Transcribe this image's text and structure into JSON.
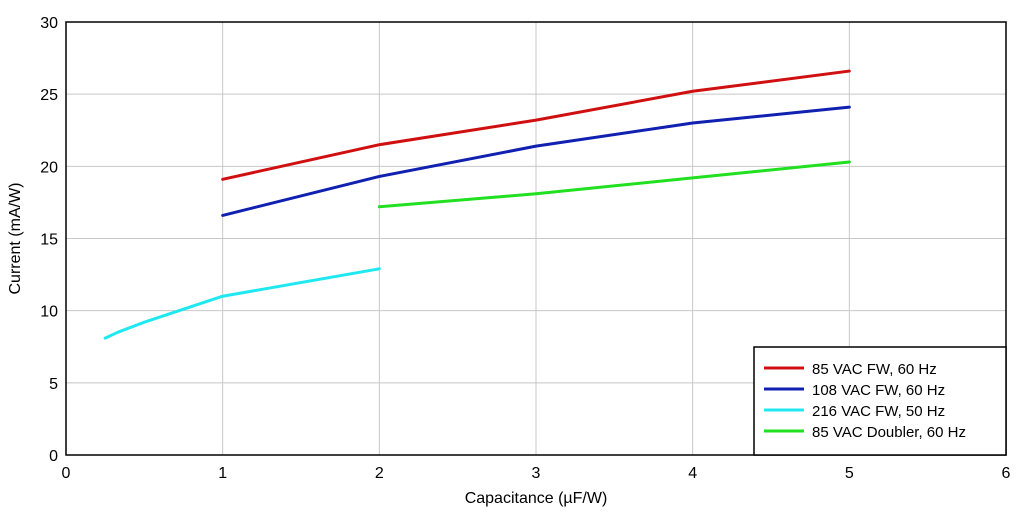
{
  "chart_data": {
    "type": "line",
    "xlabel": "Capacitance (µF/W)",
    "ylabel": "Current (mA/W)",
    "xlim": [
      0,
      6
    ],
    "ylim": [
      0,
      30
    ],
    "xticks": [
      0,
      1,
      2,
      3,
      4,
      5,
      6
    ],
    "yticks": [
      0,
      5,
      10,
      15,
      20,
      25,
      30
    ],
    "grid": true,
    "legend_position": "bottom-right",
    "series": [
      {
        "name": "85 VAC FW, 60 Hz",
        "color": "#d01010",
        "x": [
          1,
          2,
          3,
          4,
          5
        ],
        "y": [
          19.1,
          21.5,
          23.2,
          25.2,
          26.6
        ]
      },
      {
        "name": "108 VAC FW, 60 Hz",
        "color": "#1020b0",
        "x": [
          1,
          2,
          3,
          4,
          5
        ],
        "y": [
          16.6,
          19.3,
          21.4,
          23.0,
          24.1
        ]
      },
      {
        "name": "216 VAC FW, 50 Hz",
        "color": "#20e8f0",
        "x": [
          0.25,
          0.33,
          0.5,
          1,
          2
        ],
        "y": [
          8.1,
          8.5,
          9.2,
          11.0,
          12.9
        ]
      },
      {
        "name": "85 VAC Doubler, 60 Hz",
        "color": "#20e020",
        "x": [
          2,
          3,
          4,
          5
        ],
        "y": [
          17.2,
          18.1,
          19.2,
          20.3
        ]
      }
    ]
  }
}
